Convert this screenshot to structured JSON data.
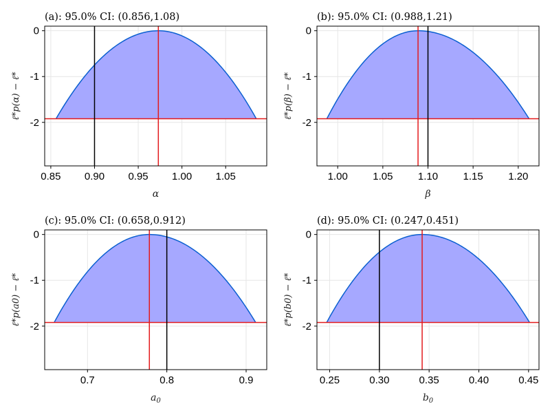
{
  "chart_data": [
    {
      "type": "area",
      "title": "(a): 95.0% CI: (0.856,1.08)",
      "xlabel": "α",
      "ylabel": "ℓ*p(α) − ℓ*",
      "xlim": [
        0.843,
        1.097
      ],
      "ylim": [
        -2.95,
        0.1
      ],
      "xticks": [
        0.85,
        0.9,
        0.95,
        1.0,
        1.05
      ],
      "xtick_labels": [
        "0.85",
        "0.90",
        "0.95",
        "1.00",
        "1.05"
      ],
      "yticks": [
        0,
        -1,
        -2
      ],
      "ytick_labels": [
        "0",
        "-1",
        "-2"
      ],
      "ci": [
        0.856,
        1.085
      ],
      "mle": 0.973,
      "true_value": 0.9,
      "threshold": -1.92,
      "grid": true
    },
    {
      "type": "area",
      "title": "(b): 95.0% CI: (0.988,1.21)",
      "xlabel": "β",
      "ylabel": "ℓ*p(β) − ℓ*",
      "xlim": [
        0.977,
        1.223
      ],
      "ylim": [
        -2.95,
        0.1
      ],
      "xticks": [
        1.0,
        1.05,
        1.1,
        1.15,
        1.2
      ],
      "xtick_labels": [
        "1.00",
        "1.05",
        "1.10",
        "1.15",
        "1.20"
      ],
      "yticks": [
        0,
        -1,
        -2
      ],
      "ytick_labels": [
        "0",
        "-1",
        "-2"
      ],
      "ci": [
        0.988,
        1.212
      ],
      "mle": 1.089,
      "true_value": 1.1,
      "threshold": -1.92,
      "grid": true
    },
    {
      "type": "area",
      "title": "(c): 95.0% CI: (0.658,0.912)",
      "xlabel": "a0",
      "ylabel": "ℓ*p(a0) − ℓ*",
      "xlim": [
        0.646,
        0.926
      ],
      "ylim": [
        -2.95,
        0.1
      ],
      "xticks": [
        0.7,
        0.8,
        0.9
      ],
      "xtick_labels": [
        "0.7",
        "0.8",
        "0.9"
      ],
      "yticks": [
        0,
        -1,
        -2
      ],
      "ytick_labels": [
        "0",
        "-1",
        "-2"
      ],
      "ci": [
        0.658,
        0.912
      ],
      "mle": 0.778,
      "true_value": 0.8,
      "threshold": -1.92,
      "grid": true
    },
    {
      "type": "area",
      "title": "(d): 95.0% CI: (0.247,0.451)",
      "xlabel": "b0",
      "ylabel": "ℓ*p(b0) − ℓ*",
      "xlim": [
        0.2372,
        0.4605
      ],
      "ylim": [
        -2.95,
        0.1
      ],
      "xticks": [
        0.25,
        0.3,
        0.35,
        0.4,
        0.45
      ],
      "xtick_labels": [
        "0.25",
        "0.30",
        "0.35",
        "0.40",
        "0.45"
      ],
      "yticks": [
        0,
        -1,
        -2
      ],
      "ytick_labels": [
        "0",
        "-1",
        "-2"
      ],
      "ci": [
        0.247,
        0.451
      ],
      "mle": 0.343,
      "true_value": 0.3,
      "threshold": -1.92,
      "grid": true
    }
  ]
}
